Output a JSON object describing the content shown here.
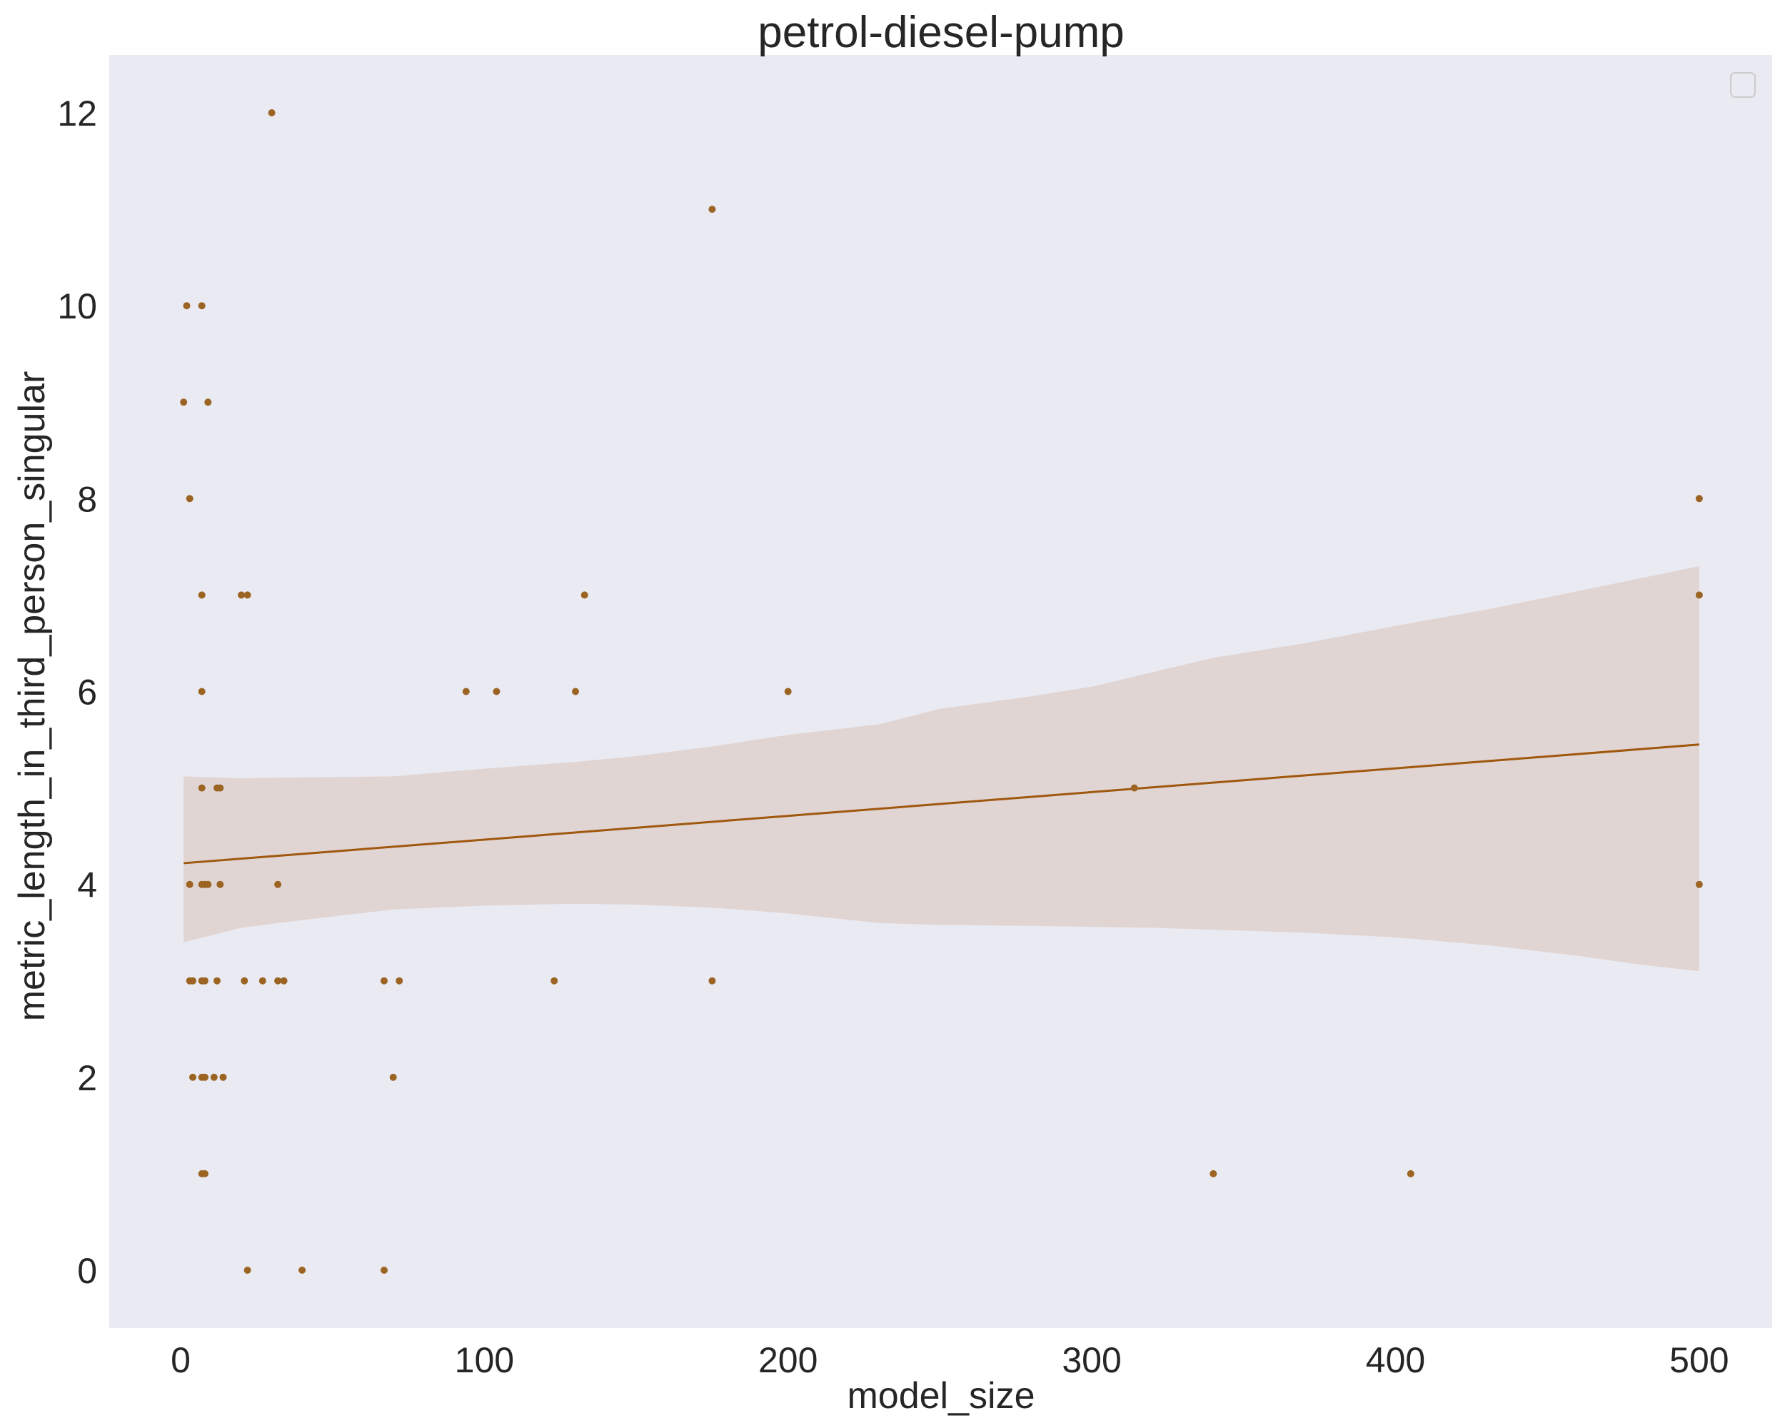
{
  "chart_data": {
    "type": "scatter",
    "title": "petrol-diesel-pump",
    "xlabel": "model_size",
    "ylabel": "metric_length_in_third_person_singular",
    "xlim": [
      -23.5,
      524
    ],
    "ylim": [
      -0.6,
      12.6
    ],
    "xticks": [
      0,
      100,
      200,
      300,
      400,
      500
    ],
    "yticks": [
      0,
      2,
      4,
      6,
      8,
      10,
      12
    ],
    "grid": false,
    "legend": "top-right",
    "colors": {
      "background": "#eaeaf2",
      "points": "#9c6423",
      "line": "#a0570e",
      "band": "#e0d5d2"
    },
    "points": [
      {
        "x": 30,
        "y": 12
      },
      {
        "x": 175,
        "y": 11
      },
      {
        "x": 2,
        "y": 10
      },
      {
        "x": 7,
        "y": 10
      },
      {
        "x": 1,
        "y": 9
      },
      {
        "x": 9,
        "y": 9
      },
      {
        "x": 3,
        "y": 8
      },
      {
        "x": 500,
        "y": 8
      },
      {
        "x": 7,
        "y": 7
      },
      {
        "x": 20,
        "y": 7
      },
      {
        "x": 22,
        "y": 7
      },
      {
        "x": 133,
        "y": 7
      },
      {
        "x": 500,
        "y": 7
      },
      {
        "x": 7,
        "y": 6
      },
      {
        "x": 94,
        "y": 6
      },
      {
        "x": 104,
        "y": 6
      },
      {
        "x": 130,
        "y": 6
      },
      {
        "x": 200,
        "y": 6
      },
      {
        "x": 7,
        "y": 5
      },
      {
        "x": 12,
        "y": 5
      },
      {
        "x": 13,
        "y": 5
      },
      {
        "x": 314,
        "y": 5
      },
      {
        "x": 3,
        "y": 4
      },
      {
        "x": 7,
        "y": 4
      },
      {
        "x": 8,
        "y": 4
      },
      {
        "x": 9,
        "y": 4
      },
      {
        "x": 13,
        "y": 4
      },
      {
        "x": 32,
        "y": 4
      },
      {
        "x": 500,
        "y": 4
      },
      {
        "x": 3,
        "y": 3
      },
      {
        "x": 4,
        "y": 3
      },
      {
        "x": 7,
        "y": 3
      },
      {
        "x": 8,
        "y": 3
      },
      {
        "x": 12,
        "y": 3
      },
      {
        "x": 21,
        "y": 3
      },
      {
        "x": 27,
        "y": 3
      },
      {
        "x": 32,
        "y": 3
      },
      {
        "x": 34,
        "y": 3
      },
      {
        "x": 67,
        "y": 3
      },
      {
        "x": 72,
        "y": 3
      },
      {
        "x": 123,
        "y": 3
      },
      {
        "x": 175,
        "y": 3
      },
      {
        "x": 4,
        "y": 2
      },
      {
        "x": 7,
        "y": 2
      },
      {
        "x": 8,
        "y": 2
      },
      {
        "x": 11,
        "y": 2
      },
      {
        "x": 14,
        "y": 2
      },
      {
        "x": 70,
        "y": 2
      },
      {
        "x": 7,
        "y": 1
      },
      {
        "x": 8,
        "y": 1
      },
      {
        "x": 340,
        "y": 1
      },
      {
        "x": 405,
        "y": 1
      },
      {
        "x": 22,
        "y": 0
      },
      {
        "x": 40,
        "y": 0
      },
      {
        "x": 67,
        "y": 0
      }
    ],
    "regression_line": {
      "x": [
        1,
        500
      ],
      "y": [
        4.22,
        5.45
      ]
    },
    "confidence_band": {
      "x": [
        1,
        20,
        40,
        70,
        100,
        130,
        150,
        175,
        200,
        230,
        250,
        280,
        300,
        320,
        340,
        370,
        400,
        430,
        460,
        480,
        500
      ],
      "upper": [
        5.12,
        5.1,
        5.11,
        5.12,
        5.2,
        5.27,
        5.33,
        5.43,
        5.55,
        5.66,
        5.82,
        5.95,
        6.05,
        6.2,
        6.35,
        6.5,
        6.68,
        6.85,
        7.04,
        7.17,
        7.3
      ],
      "lower": [
        3.4,
        3.55,
        3.63,
        3.74,
        3.78,
        3.8,
        3.79,
        3.76,
        3.7,
        3.6,
        3.58,
        3.57,
        3.56,
        3.55,
        3.53,
        3.5,
        3.45,
        3.37,
        3.26,
        3.17,
        3.1
      ]
    }
  }
}
